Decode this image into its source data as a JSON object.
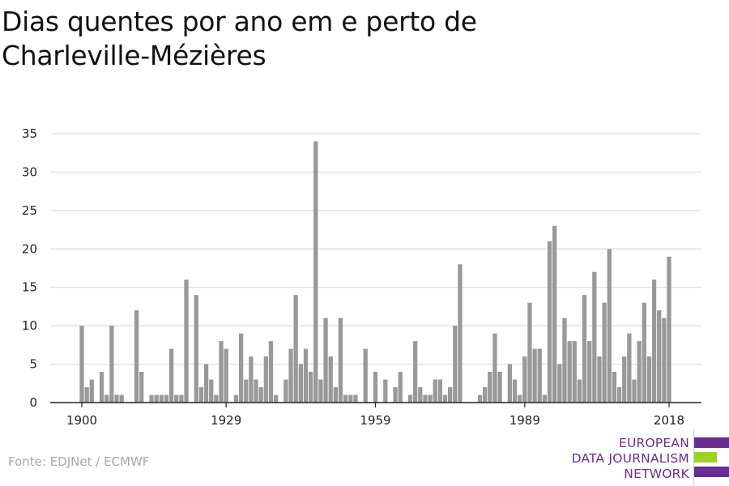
{
  "title": "Dias quentes por ano em e perto de Charleville-Mézières",
  "source": "Fonte: EDJNet / ECMWF",
  "logo": {
    "line1": "EUROPEAN",
    "line2": "DATA JOURNALISM",
    "line3": "NETWORK",
    "colors": [
      "#6a2d91",
      "#9bd31f",
      "#6a2d91"
    ]
  },
  "chart_data": {
    "type": "bar",
    "title": "Dias quentes por ano em e perto de Charleville-Mézières",
    "xlabel": "",
    "ylabel": "",
    "x_start": 1900,
    "x_end": 2018,
    "x_ticks": [
      1900,
      1929,
      1959,
      1989,
      2018
    ],
    "y_ticks": [
      0,
      5,
      10,
      15,
      20,
      25,
      30,
      35
    ],
    "ylim": [
      0,
      35
    ],
    "grid": true,
    "bar_color": "#999999",
    "values": [
      10,
      2,
      3,
      0,
      4,
      1,
      10,
      1,
      1,
      0,
      0,
      12,
      4,
      0,
      1,
      1,
      1,
      1,
      7,
      1,
      1,
      16,
      0,
      14,
      2,
      5,
      3,
      1,
      8,
      7,
      0,
      1,
      9,
      3,
      6,
      3,
      2,
      6,
      8,
      1,
      0,
      3,
      7,
      14,
      5,
      7,
      4,
      34,
      3,
      11,
      6,
      2,
      11,
      1,
      1,
      1,
      0,
      7,
      0,
      4,
      0,
      3,
      0,
      2,
      4,
      0,
      1,
      8,
      2,
      1,
      1,
      3,
      3,
      1,
      2,
      10,
      18,
      0,
      0,
      0,
      1,
      2,
      4,
      9,
      4,
      0,
      5,
      3,
      1,
      6,
      13,
      7,
      7,
      1,
      21,
      23,
      5,
      11,
      8,
      8,
      3,
      14,
      8,
      17,
      6,
      13,
      20,
      4,
      2,
      6,
      9,
      3,
      8,
      13,
      6,
      16,
      12,
      11,
      19
    ]
  }
}
